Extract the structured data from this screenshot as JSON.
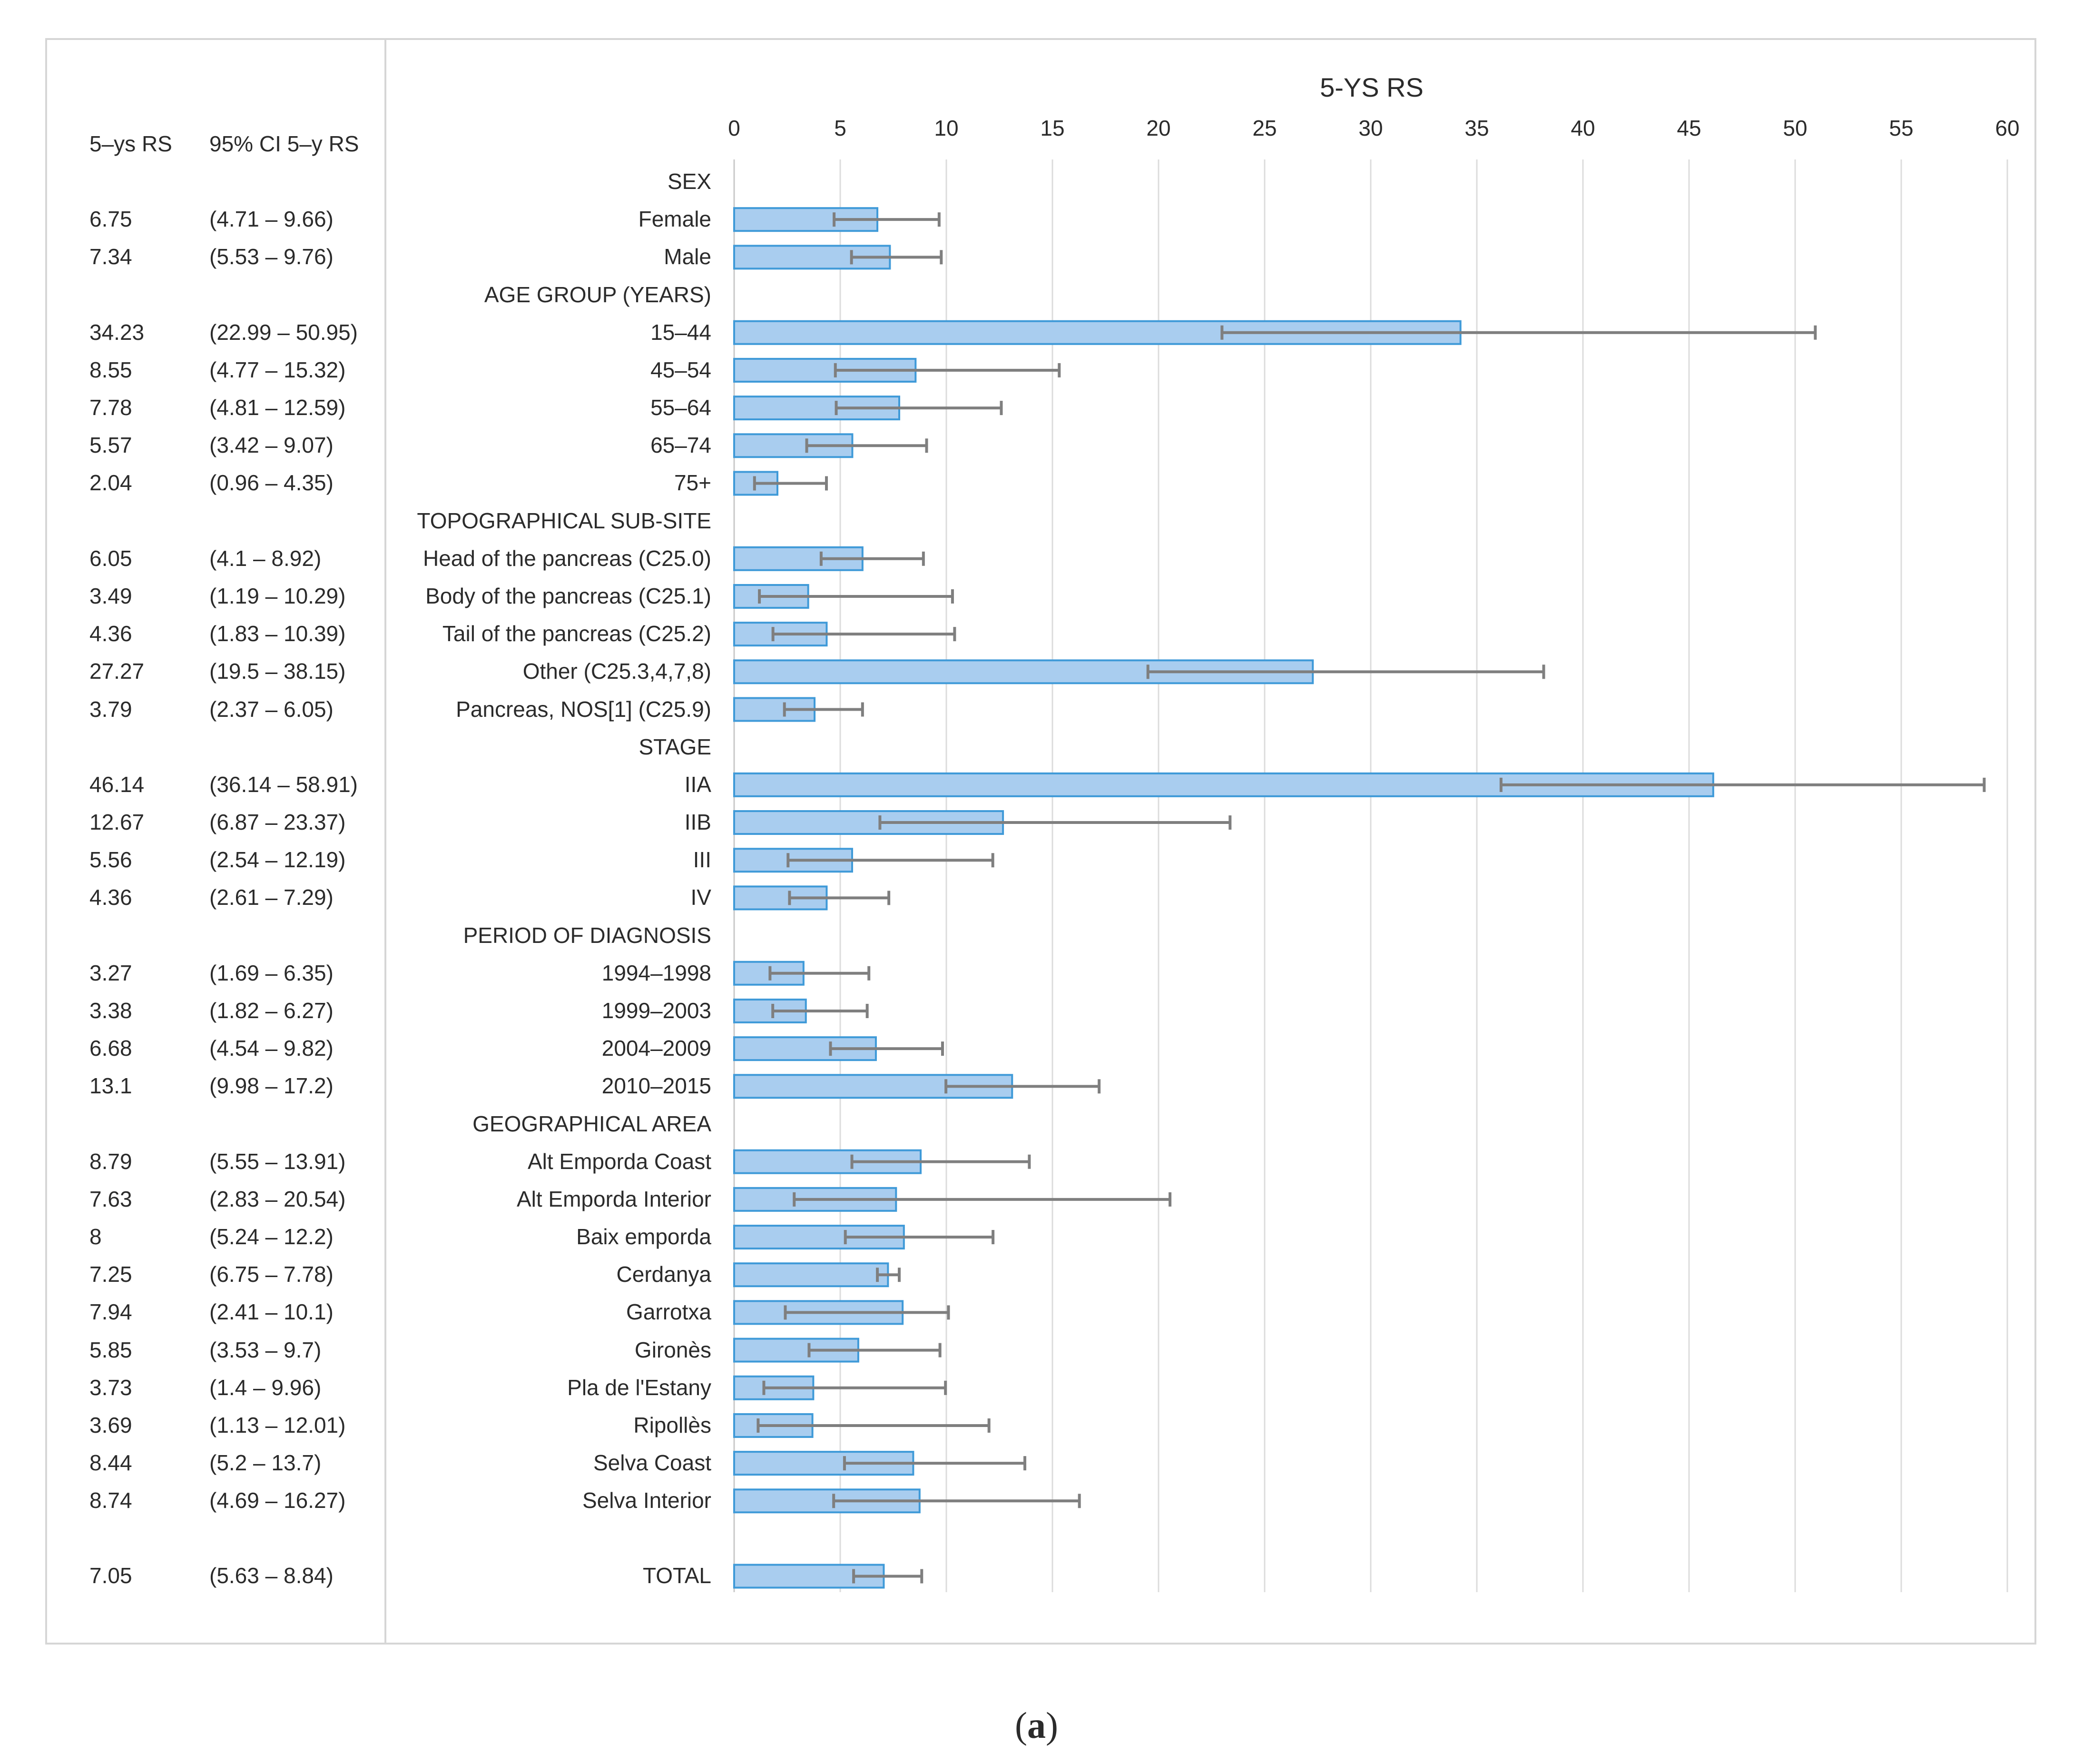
{
  "headers": {
    "rs": "5–ys RS",
    "ci": "95% CI 5–y RS"
  },
  "caption": {
    "open": "(",
    "letter": "a",
    "close": ")"
  },
  "chart_data": {
    "type": "bar",
    "orientation": "horizontal",
    "title": "5-YS RS",
    "xlim": [
      0,
      60
    ],
    "xticks": [
      "0",
      "5",
      "10",
      "15",
      "20",
      "25",
      "30",
      "35",
      "40",
      "45",
      "50",
      "55",
      "60"
    ],
    "grid": true,
    "bar_color": "#a9cdef",
    "bar_edge_color": "#3f9ad8",
    "error_bar_color": "#7f7f7f",
    "rows": [
      {
        "label": "SEX",
        "section": true
      },
      {
        "label": "Female",
        "value": 6.75,
        "rs": "6.75",
        "ci": "(4.71 – 9.66)",
        "lo": 4.71,
        "hi": 9.66
      },
      {
        "label": "Male",
        "value": 7.34,
        "rs": "7.34",
        "ci": "(5.53 – 9.76)",
        "lo": 5.53,
        "hi": 9.76
      },
      {
        "label": "AGE GROUP (YEARS)",
        "section": true
      },
      {
        "label": "15–44",
        "value": 34.23,
        "rs": "34.23",
        "ci": "(22.99 – 50.95)",
        "lo": 22.99,
        "hi": 50.95
      },
      {
        "label": "45–54",
        "value": 8.55,
        "rs": "8.55",
        "ci": "(4.77 – 15.32)",
        "lo": 4.77,
        "hi": 15.32
      },
      {
        "label": "55–64",
        "value": 7.78,
        "rs": "7.78",
        "ci": "(4.81 – 12.59)",
        "lo": 4.81,
        "hi": 12.59
      },
      {
        "label": "65–74",
        "value": 5.57,
        "rs": "5.57",
        "ci": "(3.42 – 9.07)",
        "lo": 3.42,
        "hi": 9.07
      },
      {
        "label": "75+",
        "value": 2.04,
        "rs": "2.04",
        "ci": "(0.96 – 4.35)",
        "lo": 0.96,
        "hi": 4.35
      },
      {
        "label": "TOPOGRAPHICAL SUB-SITE",
        "section": true
      },
      {
        "label": "Head of the pancreas (C25.0)",
        "value": 6.05,
        "rs": "6.05",
        "ci": "(4.1 – 8.92)",
        "lo": 4.1,
        "hi": 8.92
      },
      {
        "label": "Body of the pancreas  (C25.1)",
        "value": 3.49,
        "rs": "3.49",
        "ci": "(1.19 – 10.29)",
        "lo": 1.19,
        "hi": 10.29
      },
      {
        "label": "Tail of the pancreas (C25.2)",
        "value": 4.36,
        "rs": "4.36",
        "ci": "(1.83 – 10.39)",
        "lo": 1.83,
        "hi": 10.39
      },
      {
        "label": "Other (C25.3,4,7,8)",
        "value": 27.27,
        "rs": "27.27",
        "ci": "(19.5 – 38.15)",
        "lo": 19.5,
        "hi": 38.15
      },
      {
        "label": "Pancreas, NOS[1] (C25.9)",
        "value": 3.79,
        "rs": "3.79",
        "ci": "(2.37 – 6.05)",
        "lo": 2.37,
        "hi": 6.05
      },
      {
        "label": "STAGE",
        "section": true
      },
      {
        "label": "IIA",
        "value": 46.14,
        "rs": "46.14",
        "ci": "(36.14 – 58.91)",
        "lo": 36.14,
        "hi": 58.91
      },
      {
        "label": "IIB",
        "value": 12.67,
        "rs": "12.67",
        "ci": "(6.87 – 23.37)",
        "lo": 6.87,
        "hi": 23.37
      },
      {
        "label": "III",
        "value": 5.56,
        "rs": "5.56",
        "ci": "(2.54 – 12.19)",
        "lo": 2.54,
        "hi": 12.19
      },
      {
        "label": "IV",
        "value": 4.36,
        "rs": "4.36",
        "ci": "(2.61 – 7.29)",
        "lo": 2.61,
        "hi": 7.29
      },
      {
        "label": "PERIOD OF DIAGNOSIS",
        "section": true
      },
      {
        "label": "1994–1998",
        "value": 3.27,
        "rs": "3.27",
        "ci": "(1.69 – 6.35)",
        "lo": 1.69,
        "hi": 6.35
      },
      {
        "label": "1999–2003",
        "value": 3.38,
        "rs": "3.38",
        "ci": "(1.82 – 6.27)",
        "lo": 1.82,
        "hi": 6.27
      },
      {
        "label": "2004–2009",
        "value": 6.68,
        "rs": "6.68",
        "ci": "(4.54 – 9.82)",
        "lo": 4.54,
        "hi": 9.82
      },
      {
        "label": "2010–2015",
        "value": 13.1,
        "rs": "13.1",
        "ci": "(9.98 – 17.2)",
        "lo": 9.98,
        "hi": 17.2
      },
      {
        "label": "GEOGRAPHICAL AREA",
        "section": true
      },
      {
        "label": "Alt Emporda Coast",
        "value": 8.79,
        "rs": "8.79",
        "ci": "(5.55 – 13.91)",
        "lo": 5.55,
        "hi": 13.91
      },
      {
        "label": "Alt Emporda Interior",
        "value": 7.63,
        "rs": "7.63",
        "ci": "(2.83 – 20.54)",
        "lo": 2.83,
        "hi": 20.54
      },
      {
        "label": "Baix emporda",
        "value": 8,
        "rs": "8",
        "ci": "(5.24 – 12.2)",
        "lo": 5.24,
        "hi": 12.2
      },
      {
        "label": "Cerdanya",
        "value": 7.25,
        "rs": "7.25",
        "ci": "(6.75 – 7.78)",
        "lo": 6.75,
        "hi": 7.78
      },
      {
        "label": "Garrotxa",
        "value": 7.94,
        "rs": "7.94",
        "ci": "(2.41 – 10.1)",
        "lo": 2.41,
        "hi": 10.1
      },
      {
        "label": "Gironès",
        "value": 5.85,
        "rs": "5.85",
        "ci": "(3.53 – 9.7)",
        "lo": 3.53,
        "hi": 9.7
      },
      {
        "label": "Pla de l'Estany",
        "value": 3.73,
        "rs": "3.73",
        "ci": "(1.4 – 9.96)",
        "lo": 1.4,
        "hi": 9.96
      },
      {
        "label": "Ripollès",
        "value": 3.69,
        "rs": "3.69",
        "ci": "(1.13 – 12.01)",
        "lo": 1.13,
        "hi": 12.01
      },
      {
        "label": "Selva Coast",
        "value": 8.44,
        "rs": "8.44",
        "ci": "(5.2 – 13.7)",
        "lo": 5.2,
        "hi": 13.7
      },
      {
        "label": "Selva Interior",
        "value": 8.74,
        "rs": "8.74",
        "ci": "(4.69 – 16.27)",
        "lo": 4.69,
        "hi": 16.27
      },
      {
        "label": "TOTAL",
        "value": 7.05,
        "rs": "7.05",
        "ci": "(5.63 – 8.84)",
        "lo": 5.63,
        "hi": 8.84,
        "gap_before": true
      }
    ]
  }
}
